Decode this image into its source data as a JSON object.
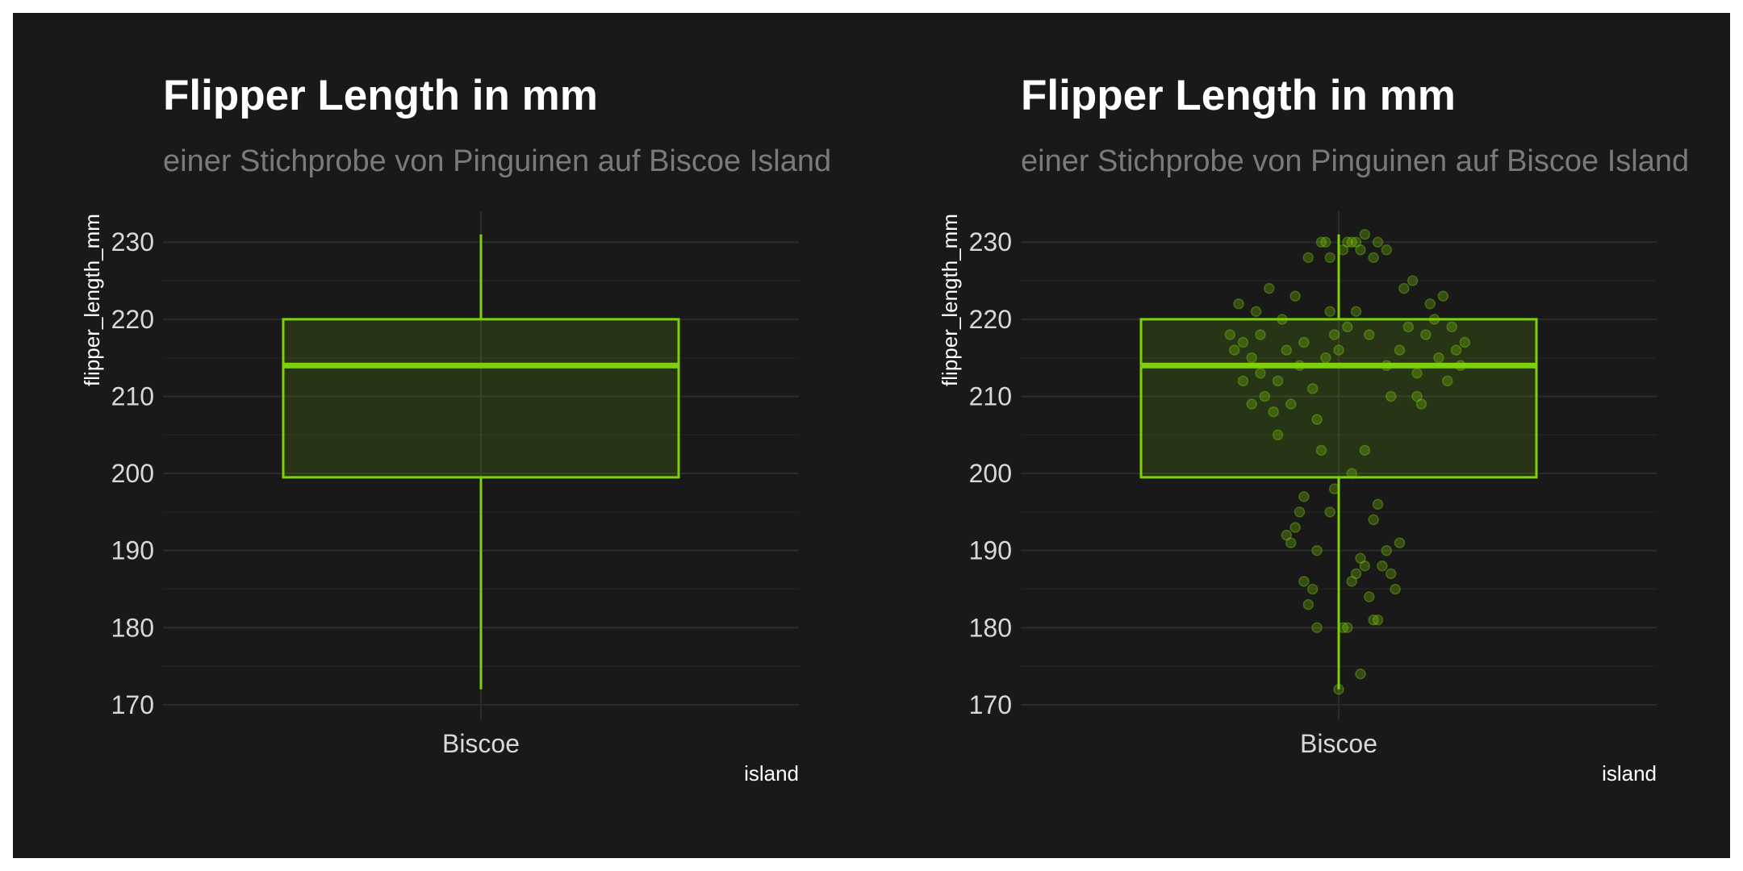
{
  "accent_color": "#7fd00a",
  "background_color": "#191919",
  "chart_data": [
    {
      "type": "box",
      "title": "Flipper Length in mm",
      "subtitle": "einer Stichprobe von Pinguinen auf Biscoe Island",
      "xlabel": "island",
      "ylabel": "flipper_length_mm",
      "categories": [
        "Biscoe"
      ],
      "ylim": [
        168,
        234
      ],
      "yticks": [
        "170",
        "180",
        "190",
        "200",
        "210",
        "220",
        "230"
      ],
      "grid": true,
      "box": {
        "min": 172,
        "q1": 199.5,
        "median": 214,
        "q3": 220,
        "max": 231
      }
    },
    {
      "type": "box",
      "title": "Flipper Length in mm",
      "subtitle": "einer Stichprobe von Pinguinen auf Biscoe Island",
      "xlabel": "island",
      "ylabel": "flipper_length_mm",
      "categories": [
        "Biscoe"
      ],
      "ylim": [
        168,
        234
      ],
      "yticks": [
        "170",
        "180",
        "190",
        "200",
        "210",
        "220",
        "230"
      ],
      "grid": true,
      "box": {
        "min": 172,
        "q1": 199.5,
        "median": 214,
        "q3": 220,
        "max": 231
      },
      "jitter_points": [
        {
          "x": -0.25,
          "y": 218
        },
        {
          "x": -0.23,
          "y": 222
        },
        {
          "x": -0.22,
          "y": 217
        },
        {
          "x": -0.2,
          "y": 215
        },
        {
          "x": -0.19,
          "y": 221
        },
        {
          "x": -0.18,
          "y": 213
        },
        {
          "x": -0.17,
          "y": 210
        },
        {
          "x": -0.16,
          "y": 224
        },
        {
          "x": -0.15,
          "y": 208
        },
        {
          "x": -0.14,
          "y": 212
        },
        {
          "x": -0.13,
          "y": 220
        },
        {
          "x": -0.12,
          "y": 216
        },
        {
          "x": -0.11,
          "y": 209
        },
        {
          "x": -0.1,
          "y": 223
        },
        {
          "x": -0.09,
          "y": 214
        },
        {
          "x": -0.08,
          "y": 217
        },
        {
          "x": -0.07,
          "y": 228
        },
        {
          "x": -0.06,
          "y": 211
        },
        {
          "x": -0.05,
          "y": 207
        },
        {
          "x": -0.04,
          "y": 203
        },
        {
          "x": -0.03,
          "y": 215
        },
        {
          "x": -0.02,
          "y": 221
        },
        {
          "x": -0.01,
          "y": 218
        },
        {
          "x": 0.0,
          "y": 216
        },
        {
          "x": -0.12,
          "y": 192
        },
        {
          "x": -0.11,
          "y": 191
        },
        {
          "x": -0.1,
          "y": 193
        },
        {
          "x": -0.09,
          "y": 195
        },
        {
          "x": -0.08,
          "y": 197
        },
        {
          "x": -0.07,
          "y": 183
        },
        {
          "x": -0.06,
          "y": 185
        },
        {
          "x": -0.05,
          "y": 180
        },
        {
          "x": -0.04,
          "y": 230
        },
        {
          "x": -0.03,
          "y": 230
        },
        {
          "x": -0.02,
          "y": 228
        },
        {
          "x": -0.01,
          "y": 198
        },
        {
          "x": 0.01,
          "y": 229
        },
        {
          "x": 0.02,
          "y": 230
        },
        {
          "x": 0.03,
          "y": 230
        },
        {
          "x": 0.04,
          "y": 230
        },
        {
          "x": 0.05,
          "y": 229
        },
        {
          "x": 0.06,
          "y": 231
        },
        {
          "x": 0.08,
          "y": 228
        },
        {
          "x": 0.09,
          "y": 230
        },
        {
          "x": 0.11,
          "y": 229
        },
        {
          "x": 0.03,
          "y": 186
        },
        {
          "x": 0.04,
          "y": 187
        },
        {
          "x": 0.05,
          "y": 189
        },
        {
          "x": 0.06,
          "y": 188
        },
        {
          "x": 0.07,
          "y": 184
        },
        {
          "x": 0.08,
          "y": 181
        },
        {
          "x": 0.09,
          "y": 181
        },
        {
          "x": 0.1,
          "y": 188
        },
        {
          "x": 0.11,
          "y": 190
        },
        {
          "x": 0.12,
          "y": 187
        },
        {
          "x": 0.13,
          "y": 185
        },
        {
          "x": 0.14,
          "y": 191
        },
        {
          "x": 0.01,
          "y": 180
        },
        {
          "x": 0.02,
          "y": 180
        },
        {
          "x": 0.0,
          "y": 172
        },
        {
          "x": 0.05,
          "y": 174
        },
        {
          "x": -0.02,
          "y": 195
        },
        {
          "x": -0.05,
          "y": 190
        },
        {
          "x": -0.08,
          "y": 186
        },
        {
          "x": 0.03,
          "y": 200
        },
        {
          "x": 0.06,
          "y": 203
        },
        {
          "x": 0.08,
          "y": 194
        },
        {
          "x": 0.09,
          "y": 196
        },
        {
          "x": 0.12,
          "y": 210
        },
        {
          "x": 0.15,
          "y": 224
        },
        {
          "x": 0.16,
          "y": 219
        },
        {
          "x": 0.17,
          "y": 225
        },
        {
          "x": 0.18,
          "y": 213
        },
        {
          "x": 0.19,
          "y": 209
        },
        {
          "x": 0.2,
          "y": 218
        },
        {
          "x": 0.21,
          "y": 222
        },
        {
          "x": 0.22,
          "y": 220
        },
        {
          "x": 0.23,
          "y": 215
        },
        {
          "x": 0.24,
          "y": 223
        },
        {
          "x": 0.25,
          "y": 212
        },
        {
          "x": 0.26,
          "y": 219
        },
        {
          "x": 0.27,
          "y": 216
        },
        {
          "x": 0.28,
          "y": 214
        },
        {
          "x": 0.29,
          "y": 217
        },
        {
          "x": 0.18,
          "y": 210
        },
        {
          "x": 0.14,
          "y": 216
        },
        {
          "x": 0.11,
          "y": 214
        },
        {
          "x": 0.07,
          "y": 218
        },
        {
          "x": 0.04,
          "y": 221
        },
        {
          "x": 0.02,
          "y": 219
        },
        {
          "x": -0.14,
          "y": 205
        },
        {
          "x": -0.2,
          "y": 209
        },
        {
          "x": -0.22,
          "y": 212
        },
        {
          "x": -0.24,
          "y": 216
        },
        {
          "x": -0.18,
          "y": 218
        }
      ]
    }
  ]
}
